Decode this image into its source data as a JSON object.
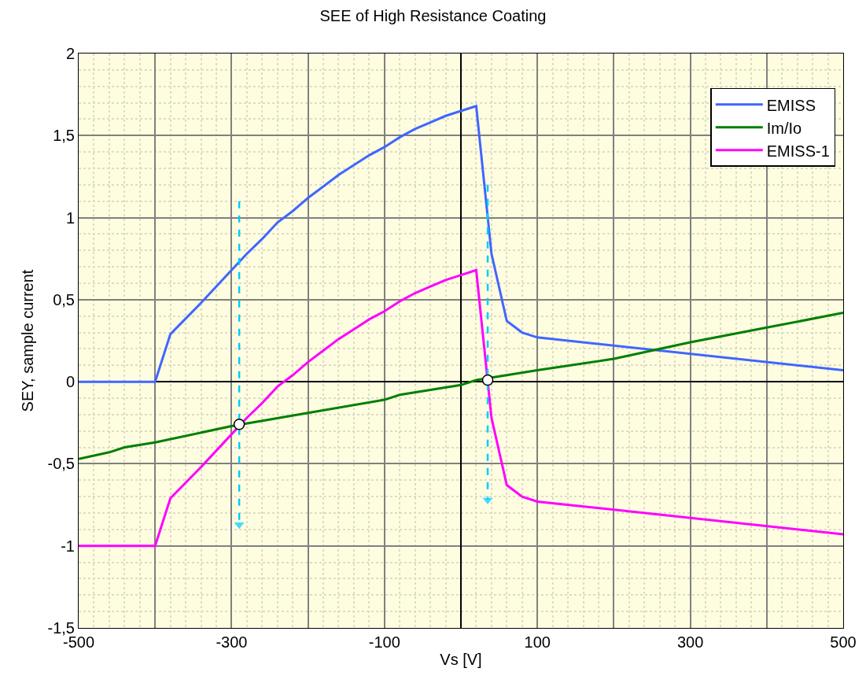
{
  "chart_data": {
    "type": "line",
    "title": "SEE of High Resistance Coating",
    "xlabel": "Vs [V]",
    "ylabel": "SEY, sample current",
    "xlim": [
      -500,
      500
    ],
    "xticks": [
      -500,
      {
        "value": -400,
        "label": null
      },
      -300,
      {
        "value": -200,
        "label": null
      },
      -100,
      {
        "value": 0,
        "label": null
      },
      100,
      {
        "value": 200,
        "label": null
      },
      300,
      {
        "value": 400,
        "label": null
      },
      500
    ],
    "ylim": [
      -1.5,
      2
    ],
    "yticks": [
      {
        "value": -1.5,
        "label": "-1,5"
      },
      -1,
      {
        "value": -0.5,
        "label": "-0,5"
      },
      0,
      {
        "value": 0.5,
        "label": "0,5"
      },
      1,
      {
        "value": 1.5,
        "label": "1,5"
      },
      2
    ],
    "grid": true,
    "legend": "top right",
    "series": [
      {
        "name": "EMISS",
        "color": "#3f66ff",
        "x": [
          -500,
          -400,
          -380,
          -340,
          -300,
          -280,
          -260,
          -240,
          -220,
          -200,
          -180,
          -160,
          -140,
          -120,
          -100,
          -80,
          -60,
          -40,
          -20,
          0,
          20,
          40,
          60,
          80,
          100,
          500
        ],
        "values": [
          0,
          0,
          0.29,
          0.48,
          0.68,
          0.78,
          0.87,
          0.97,
          1.04,
          1.12,
          1.19,
          1.26,
          1.32,
          1.38,
          1.43,
          1.49,
          1.54,
          1.58,
          1.62,
          1.65,
          1.68,
          0.78,
          0.37,
          0.3,
          0.27,
          0.07
        ]
      },
      {
        "name": "Im/Io",
        "color": "#007f00",
        "x": [
          -500,
          -460,
          -440,
          -400,
          -300,
          -200,
          -100,
          -80,
          0,
          20,
          60,
          100,
          200,
          300,
          400,
          500
        ],
        "values": [
          -0.47,
          -0.43,
          -0.4,
          -0.37,
          -0.27,
          -0.19,
          -0.11,
          -0.08,
          -0.02,
          0.01,
          0.04,
          0.07,
          0.14,
          0.24,
          0.33,
          0.42
        ]
      },
      {
        "name": "EMISS-1",
        "color": "#ff00ff",
        "x": [
          -500,
          -400,
          -380,
          -340,
          -300,
          -280,
          -260,
          -240,
          -220,
          -200,
          -180,
          -160,
          -140,
          -120,
          -100,
          -80,
          -60,
          -40,
          -20,
          0,
          20,
          40,
          60,
          80,
          100,
          500
        ],
        "values": [
          -1,
          -1,
          -0.71,
          -0.52,
          -0.32,
          -0.22,
          -0.13,
          -0.03,
          0.04,
          0.12,
          0.19,
          0.26,
          0.32,
          0.38,
          0.43,
          0.49,
          0.54,
          0.58,
          0.62,
          0.65,
          0.68,
          -0.22,
          -0.63,
          -0.7,
          -0.73,
          -0.93
        ]
      },
      {
        "type": "line",
        "color": "#00ccff",
        "line_style": "dashed",
        "marker": "triangle",
        "x": [
          -290,
          -290
        ],
        "values": [
          1.1,
          -0.87
        ]
      },
      {
        "type": "line",
        "color": "#00ccff",
        "line_style": "dashed",
        "marker": "triangle",
        "x": [
          35,
          35
        ],
        "values": [
          1.2,
          -0.72
        ]
      },
      {
        "type": "scatter",
        "color": "#ffffff",
        "marker": "circle",
        "x": [
          -290,
          35
        ],
        "values": [
          -0.26,
          0.01
        ]
      }
    ]
  }
}
